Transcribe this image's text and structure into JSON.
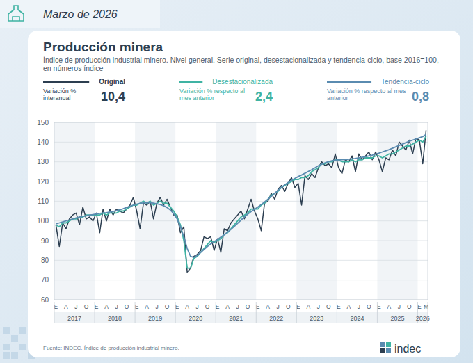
{
  "chart_data": {
    "type": "line",
    "header": "Marzo de 2026",
    "title": "Producción minera",
    "subtitle": "Índice de producción industrial minero. Nivel general. Serie original, desestacionalizada y tendencia-ciclo, base 2016=100, en números índice",
    "source": "Fuente: INDEC, Índice de producción industrial minero.",
    "logo_text": "indec",
    "legend": "top",
    "grid": true,
    "ylim": [
      60,
      150
    ],
    "yticks": [
      60,
      70,
      80,
      90,
      100,
      110,
      120,
      130,
      140,
      150
    ],
    "year_labels": [
      "2017",
      "2018",
      "2019",
      "2020",
      "2021",
      "2022",
      "2023",
      "2024",
      "2025",
      "2026"
    ],
    "categories": [
      "E",
      null,
      null,
      "A",
      null,
      null,
      "J",
      null,
      null,
      "O",
      null,
      null,
      "E",
      null,
      null,
      "A",
      null,
      null,
      "J",
      null,
      null,
      "O",
      null,
      null,
      "E",
      null,
      null,
      "A",
      null,
      null,
      "J",
      null,
      null,
      "O",
      null,
      null,
      "E",
      null,
      null,
      "A",
      null,
      null,
      "J",
      null,
      null,
      "O",
      null,
      null,
      "E",
      null,
      null,
      "A",
      null,
      null,
      "J",
      null,
      null,
      "O",
      null,
      null,
      "E",
      null,
      null,
      "A",
      null,
      null,
      "J",
      null,
      null,
      "O",
      null,
      null,
      "E",
      null,
      null,
      "A",
      null,
      null,
      "J",
      null,
      null,
      "O",
      null,
      null,
      "E",
      null,
      null,
      "A",
      null,
      null,
      "J",
      null,
      null,
      "O",
      null,
      null,
      "E",
      null,
      null,
      "A",
      null,
      null,
      "J",
      null,
      null,
      "O",
      null,
      null,
      "E",
      null,
      "M"
    ],
    "series": [
      {
        "name": "Original",
        "color": "#2c3e50",
        "change_label": "Variación % interanual",
        "change": {
          "value": 10.4,
          "label": "10,4"
        },
        "values": [
          98,
          87,
          99,
          96,
          101,
          103,
          104,
          98,
          107,
          101,
          102,
          100,
          104,
          94,
          106,
          100,
          106,
          103,
          106,
          105,
          104,
          106,
          108,
          112,
          105,
          96,
          109,
          108,
          110,
          101,
          109,
          112,
          108,
          111,
          107,
          103,
          103,
          94,
          97,
          74,
          76,
          82,
          83,
          85,
          92,
          91,
          92,
          85,
          91,
          84,
          96,
          95,
          99,
          101,
          103,
          105,
          101,
          106,
          111,
          105,
          101,
          95,
          109,
          110,
          114,
          111,
          116,
          118,
          115,
          119,
          122,
          117,
          119,
          108,
          123,
          121,
          124,
          122,
          127,
          130,
          128,
          129,
          127,
          134,
          127,
          124,
          131,
          130,
          133,
          125,
          134,
          131,
          133,
          135,
          131,
          135,
          131,
          125,
          132,
          131,
          136,
          133,
          140,
          138,
          136,
          141,
          134,
          142,
          141,
          129,
          146
        ]
      },
      {
        "name": "Desestacionalizada",
        "color": "#3fb3a3",
        "change_label": "Variación % respecto al mes anterior",
        "change": {
          "value": 2.4,
          "label": "2,4"
        },
        "values": [
          98,
          97,
          99,
          99,
          100,
          101,
          101,
          102,
          102,
          103,
          103,
          103,
          103,
          103,
          104,
          103,
          104,
          104,
          104,
          105,
          105,
          106,
          107,
          108,
          108,
          109,
          110,
          109,
          110,
          108,
          109,
          110,
          109,
          109,
          107,
          105,
          102,
          98,
          90,
          76,
          76,
          81,
          82,
          84,
          86,
          88,
          90,
          89,
          90,
          91,
          93,
          94,
          96,
          98,
          100,
          102,
          103,
          104,
          106,
          106,
          106,
          108,
          109,
          111,
          113,
          114,
          115,
          117,
          118,
          119,
          120,
          121,
          121,
          122,
          122,
          123,
          125,
          126,
          127,
          129,
          129,
          130,
          130,
          131,
          131,
          130,
          130,
          130,
          131,
          130,
          131,
          131,
          132,
          132,
          132,
          133,
          133,
          132,
          133,
          134,
          134,
          135,
          136,
          137,
          138,
          138,
          139,
          140,
          141,
          140,
          143
        ]
      },
      {
        "name": "Tendencia-ciclo",
        "color": "#5a8bb0",
        "change_label": "Variación % respecto al mes anterior",
        "change": {
          "value": 0.8,
          "label": "0,8"
        },
        "values": [
          98.5,
          99,
          99.5,
          100,
          100.5,
          101,
          101.5,
          102,
          102.3,
          102.6,
          102.9,
          103.2,
          103.5,
          103.8,
          104,
          104.2,
          104.5,
          104.8,
          105.2,
          105.7,
          106.2,
          106.8,
          107.4,
          108,
          108.5,
          108.9,
          109.1,
          109.2,
          109.2,
          109,
          108.7,
          108.3,
          107.7,
          106.8,
          105.5,
          103.7,
          101,
          97,
          92,
          86,
          82,
          81.5,
          82.5,
          84,
          85.5,
          87,
          88.3,
          89.5,
          90.5,
          91.8,
          93,
          94.3,
          95.7,
          97.2,
          98.8,
          100.4,
          102,
          103.4,
          104.7,
          105.9,
          107,
          108.3,
          109.6,
          111,
          112.5,
          114,
          115.5,
          117,
          118.3,
          119.5,
          120.6,
          121.6,
          122.5,
          123.3,
          124.2,
          125.1,
          126,
          127,
          128,
          128.8,
          129.5,
          130.1,
          130.5,
          130.8,
          131,
          131.1,
          131.2,
          131.3,
          131.5,
          131.7,
          132,
          132.3,
          132.6,
          133,
          133.4,
          133.9,
          134.4,
          135,
          135.6,
          136.2,
          136.9,
          137.6,
          138.3,
          139,
          139.7,
          140.4,
          141,
          141.6,
          142.2,
          142.8,
          143.9
        ]
      }
    ]
  }
}
